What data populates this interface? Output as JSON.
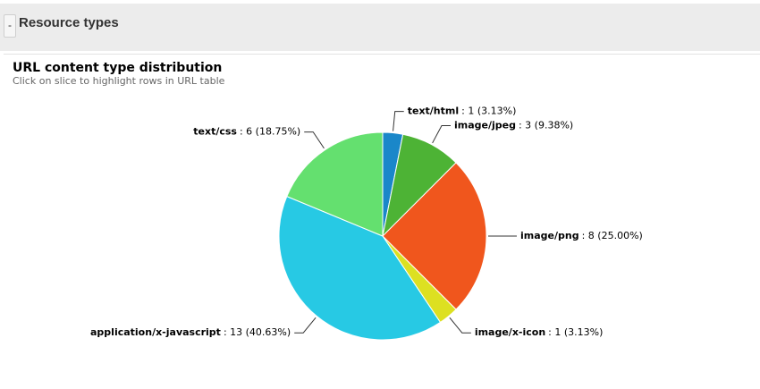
{
  "header": {
    "toggle": "-",
    "title": "Resource types"
  },
  "chart_data": {
    "type": "pie",
    "title": "URL content type distribution",
    "subtitle": "Click on slice to highlight rows in URL table",
    "categories": [
      "text/html",
      "image/jpeg",
      "image/png",
      "image/x-icon",
      "application/x-javascript",
      "text/css"
    ],
    "values": [
      1,
      3,
      8,
      1,
      13,
      6
    ],
    "value_labels": [
      ": 1 (3.13%)",
      ": 3 (9.38%)",
      ": 8 (25.00%)",
      ": 1 (3.13%)",
      ": 13 (40.63%)",
      ": 6 (18.75%)"
    ],
    "colors": [
      "#1a87c9",
      "#4db335",
      "#f0561d",
      "#dde021",
      "#27c9e4",
      "#64e06f"
    ]
  }
}
